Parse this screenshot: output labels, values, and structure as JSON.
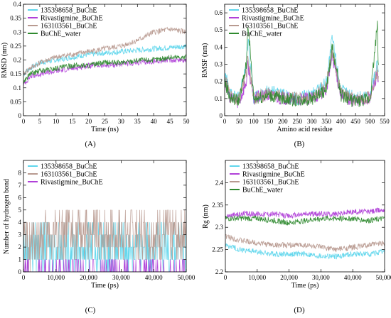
{
  "figure": {
    "panels": [
      "A",
      "B",
      "C",
      "D"
    ]
  },
  "chart_data": [
    {
      "panel": "A",
      "panel_label": "(A)",
      "type": "line",
      "xlabel": "Time (ns)",
      "ylabel": "RMSD (nm)",
      "xlim": [
        0,
        50
      ],
      "ylim": [
        0,
        0.4
      ],
      "xticks": [
        0,
        5,
        10,
        15,
        20,
        25,
        30,
        35,
        40,
        45,
        50
      ],
      "yticks": [
        0,
        0.05,
        0.1,
        0.15,
        0.2,
        0.25,
        0.3,
        0.35,
        0.4
      ],
      "ytick_labels": [
        "0",
        "0.05",
        "0.1",
        "0.15",
        "0.2",
        "0.25",
        "0.3",
        "0.35",
        "0.4"
      ],
      "legend_position": "top-left",
      "series": [
        {
          "name": "135398658_BuChE",
          "color": "#5fd6ec",
          "x": [
            0,
            2,
            5,
            10,
            15,
            20,
            25,
            30,
            35,
            40,
            45,
            50
          ],
          "y": [
            0.15,
            0.17,
            0.19,
            0.2,
            0.21,
            0.22,
            0.225,
            0.23,
            0.235,
            0.24,
            0.245,
            0.25
          ]
        },
        {
          "name": "Rivastigmine_BuChE",
          "color": "#b040d8",
          "x": [
            0,
            2,
            5,
            10,
            15,
            20,
            25,
            30,
            35,
            40,
            45,
            50
          ],
          "y": [
            0.11,
            0.14,
            0.15,
            0.16,
            0.17,
            0.18,
            0.18,
            0.185,
            0.19,
            0.195,
            0.2,
            0.2
          ]
        },
        {
          "name": "163103561_BuChE",
          "color": "#b89a90",
          "x": [
            0,
            2,
            5,
            10,
            15,
            20,
            25,
            30,
            35,
            40,
            45,
            50
          ],
          "y": [
            0.15,
            0.17,
            0.19,
            0.21,
            0.22,
            0.23,
            0.24,
            0.25,
            0.27,
            0.3,
            0.31,
            0.3
          ]
        },
        {
          "name": "BuChE_water",
          "color": "#2f8a2f",
          "x": [
            0,
            2,
            5,
            10,
            15,
            20,
            25,
            30,
            35,
            40,
            45,
            50
          ],
          "y": [
            0.12,
            0.15,
            0.16,
            0.17,
            0.18,
            0.18,
            0.19,
            0.19,
            0.2,
            0.2,
            0.21,
            0.21
          ]
        }
      ]
    },
    {
      "panel": "B",
      "panel_label": "(B)",
      "type": "line",
      "xlabel": "Amino acid residue",
      "ylabel": "RMSF (nm)",
      "xlim": [
        0,
        550
      ],
      "ylim": [
        0,
        0.65
      ],
      "xticks": [
        0,
        50,
        100,
        150,
        200,
        250,
        300,
        350,
        400,
        450,
        500,
        550
      ],
      "yticks": [
        0,
        0.1,
        0.2,
        0.3,
        0.4,
        0.5,
        0.6
      ],
      "ytick_labels": [
        "0",
        "0.1",
        "0.2",
        "0.3",
        "0.4",
        "0.5",
        "0.6"
      ],
      "legend_position": "top-left",
      "series": [
        {
          "name": "135398658_BuChE",
          "color": "#5fd6ec",
          "x": [
            0,
            20,
            50,
            75,
            80,
            100,
            150,
            200,
            250,
            300,
            350,
            370,
            400,
            450,
            500,
            525,
            530
          ],
          "y": [
            0.25,
            0.12,
            0.1,
            0.3,
            0.45,
            0.1,
            0.15,
            0.12,
            0.1,
            0.12,
            0.2,
            0.45,
            0.15,
            0.1,
            0.12,
            0.3,
            0.2
          ]
        },
        {
          "name": "Rivastigmine_BuChE",
          "color": "#b040d8",
          "x": [
            0,
            20,
            50,
            75,
            80,
            100,
            150,
            200,
            250,
            300,
            350,
            370,
            400,
            450,
            500,
            525,
            530
          ],
          "y": [
            0.2,
            0.1,
            0.08,
            0.2,
            0.3,
            0.1,
            0.12,
            0.1,
            0.09,
            0.1,
            0.15,
            0.35,
            0.12,
            0.08,
            0.1,
            0.25,
            0.15
          ]
        },
        {
          "name": "163103561_BuChE",
          "color": "#b89a90",
          "x": [
            0,
            20,
            50,
            75,
            80,
            100,
            150,
            200,
            250,
            300,
            350,
            370,
            400,
            450,
            500,
            525,
            530
          ],
          "y": [
            0.22,
            0.11,
            0.1,
            0.25,
            0.35,
            0.1,
            0.13,
            0.11,
            0.1,
            0.11,
            0.18,
            0.38,
            0.13,
            0.09,
            0.11,
            0.27,
            0.18
          ]
        },
        {
          "name": "BuChE_water",
          "color": "#2f8a2f",
          "x": [
            0,
            20,
            50,
            75,
            80,
            100,
            150,
            200,
            250,
            300,
            350,
            370,
            400,
            450,
            500,
            525,
            530
          ],
          "y": [
            0.2,
            0.1,
            0.09,
            0.3,
            0.55,
            0.1,
            0.12,
            0.1,
            0.09,
            0.1,
            0.15,
            0.4,
            0.12,
            0.08,
            0.1,
            0.53,
            0.2
          ]
        }
      ]
    },
    {
      "panel": "C",
      "panel_label": "(C)",
      "type": "line",
      "xlabel": "Time (ps)",
      "ylabel": "Number of hydrogen bond",
      "xlim": [
        0,
        50000
      ],
      "ylim": [
        0,
        9
      ],
      "xticks": [
        0,
        10000,
        20000,
        30000,
        40000,
        50000
      ],
      "xtick_labels": [
        "0",
        "10,000",
        "20,000",
        "30,000",
        "40,000",
        "50,000"
      ],
      "yticks": [
        0,
        1,
        2,
        3,
        4,
        5,
        6,
        7,
        8
      ],
      "ytick_labels": [
        "0",
        "1",
        "2",
        "3",
        "4",
        "5",
        "6",
        "7",
        "8"
      ],
      "legend_position": "top-left",
      "series": [
        {
          "name": "135398658_BuChE",
          "color": "#5fd6ec",
          "x": [
            0,
            10000,
            20000,
            30000,
            40000,
            50000
          ],
          "y": [
            2,
            2,
            2,
            2,
            2,
            2
          ]
        },
        {
          "name": "163103561_BuChE",
          "color": "#b89a90",
          "x": [
            0,
            10000,
            20000,
            30000,
            40000,
            50000
          ],
          "y": [
            2,
            3,
            3,
            3,
            3,
            3
          ]
        },
        {
          "name": "Rivastigmine_BuChE",
          "color": "#b040d8",
          "x": [
            0,
            10000,
            20000,
            30000,
            40000,
            50000
          ],
          "y": [
            0,
            0,
            0,
            0,
            0,
            0
          ]
        }
      ]
    },
    {
      "panel": "D",
      "panel_label": "(D)",
      "type": "line",
      "xlabel": "Time (ps)",
      "ylabel": "Rg (nm)",
      "xlim": [
        0,
        50000
      ],
      "ylim": [
        2.2,
        2.45
      ],
      "xticks": [
        0,
        10000,
        20000,
        30000,
        40000,
        50000
      ],
      "xtick_labels": [
        "0",
        "10,000",
        "20,000",
        "30,000",
        "40,000",
        "50,000"
      ],
      "yticks": [
        2.2,
        2.25,
        2.3,
        2.35,
        2.4
      ],
      "ytick_labels": [
        "2.2",
        "2.25",
        "2.3",
        "2.35",
        "2.4"
      ],
      "legend_position": "top-left",
      "series": [
        {
          "name": "135398658_BuChE",
          "color": "#5fd6ec",
          "x": [
            0,
            5000,
            10000,
            15000,
            20000,
            25000,
            30000,
            35000,
            40000,
            45000,
            50000
          ],
          "y": [
            2.26,
            2.25,
            2.245,
            2.24,
            2.24,
            2.24,
            2.235,
            2.235,
            2.24,
            2.24,
            2.245
          ]
        },
        {
          "name": "Rivastigmine_BuChE",
          "color": "#b040d8",
          "x": [
            0,
            5000,
            10000,
            15000,
            20000,
            25000,
            30000,
            35000,
            40000,
            45000,
            50000
          ],
          "y": [
            2.325,
            2.33,
            2.33,
            2.33,
            2.325,
            2.33,
            2.33,
            2.33,
            2.335,
            2.335,
            2.34
          ]
        },
        {
          "name": "163103561_BuChE",
          "color": "#b89a90",
          "x": [
            0,
            5000,
            10000,
            15000,
            20000,
            25000,
            30000,
            35000,
            40000,
            45000,
            50000
          ],
          "y": [
            2.28,
            2.27,
            2.265,
            2.26,
            2.26,
            2.26,
            2.255,
            2.25,
            2.255,
            2.26,
            2.265
          ]
        },
        {
          "name": "BuChE_water",
          "color": "#2f8a2f",
          "x": [
            0,
            5000,
            10000,
            15000,
            20000,
            25000,
            30000,
            35000,
            40000,
            45000,
            50000
          ],
          "y": [
            2.32,
            2.32,
            2.32,
            2.315,
            2.31,
            2.315,
            2.32,
            2.32,
            2.32,
            2.315,
            2.32
          ]
        }
      ]
    }
  ]
}
